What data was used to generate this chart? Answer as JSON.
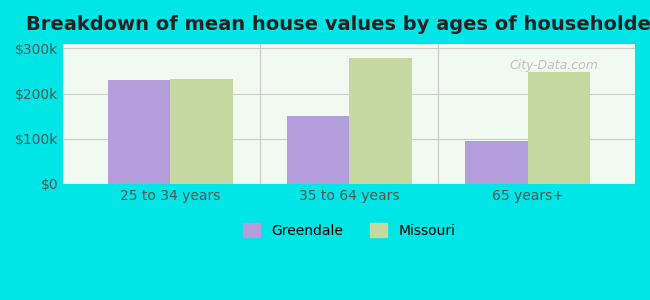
{
  "title": "Breakdown of mean house values by ages of householders",
  "categories": [
    "25 to 34 years",
    "35 to 64 years",
    "65 years+"
  ],
  "greendale_values": [
    230000,
    150000,
    95000
  ],
  "missouri_values": [
    232000,
    278000,
    248000
  ],
  "greendale_color": "#b39ddb",
  "missouri_color": "#c5d8a0",
  "background_outer": "#00e5e5",
  "background_inner": "#f0faf0",
  "ylim": [
    0,
    310000
  ],
  "yticks": [
    0,
    100000,
    200000,
    300000
  ],
  "ytick_labels": [
    "$0",
    "$100k",
    "$200k",
    "$300k"
  ],
  "legend_labels": [
    "Greendale",
    "Missouri"
  ],
  "bar_width": 0.35,
  "title_fontsize": 14,
  "tick_fontsize": 10,
  "legend_fontsize": 10
}
